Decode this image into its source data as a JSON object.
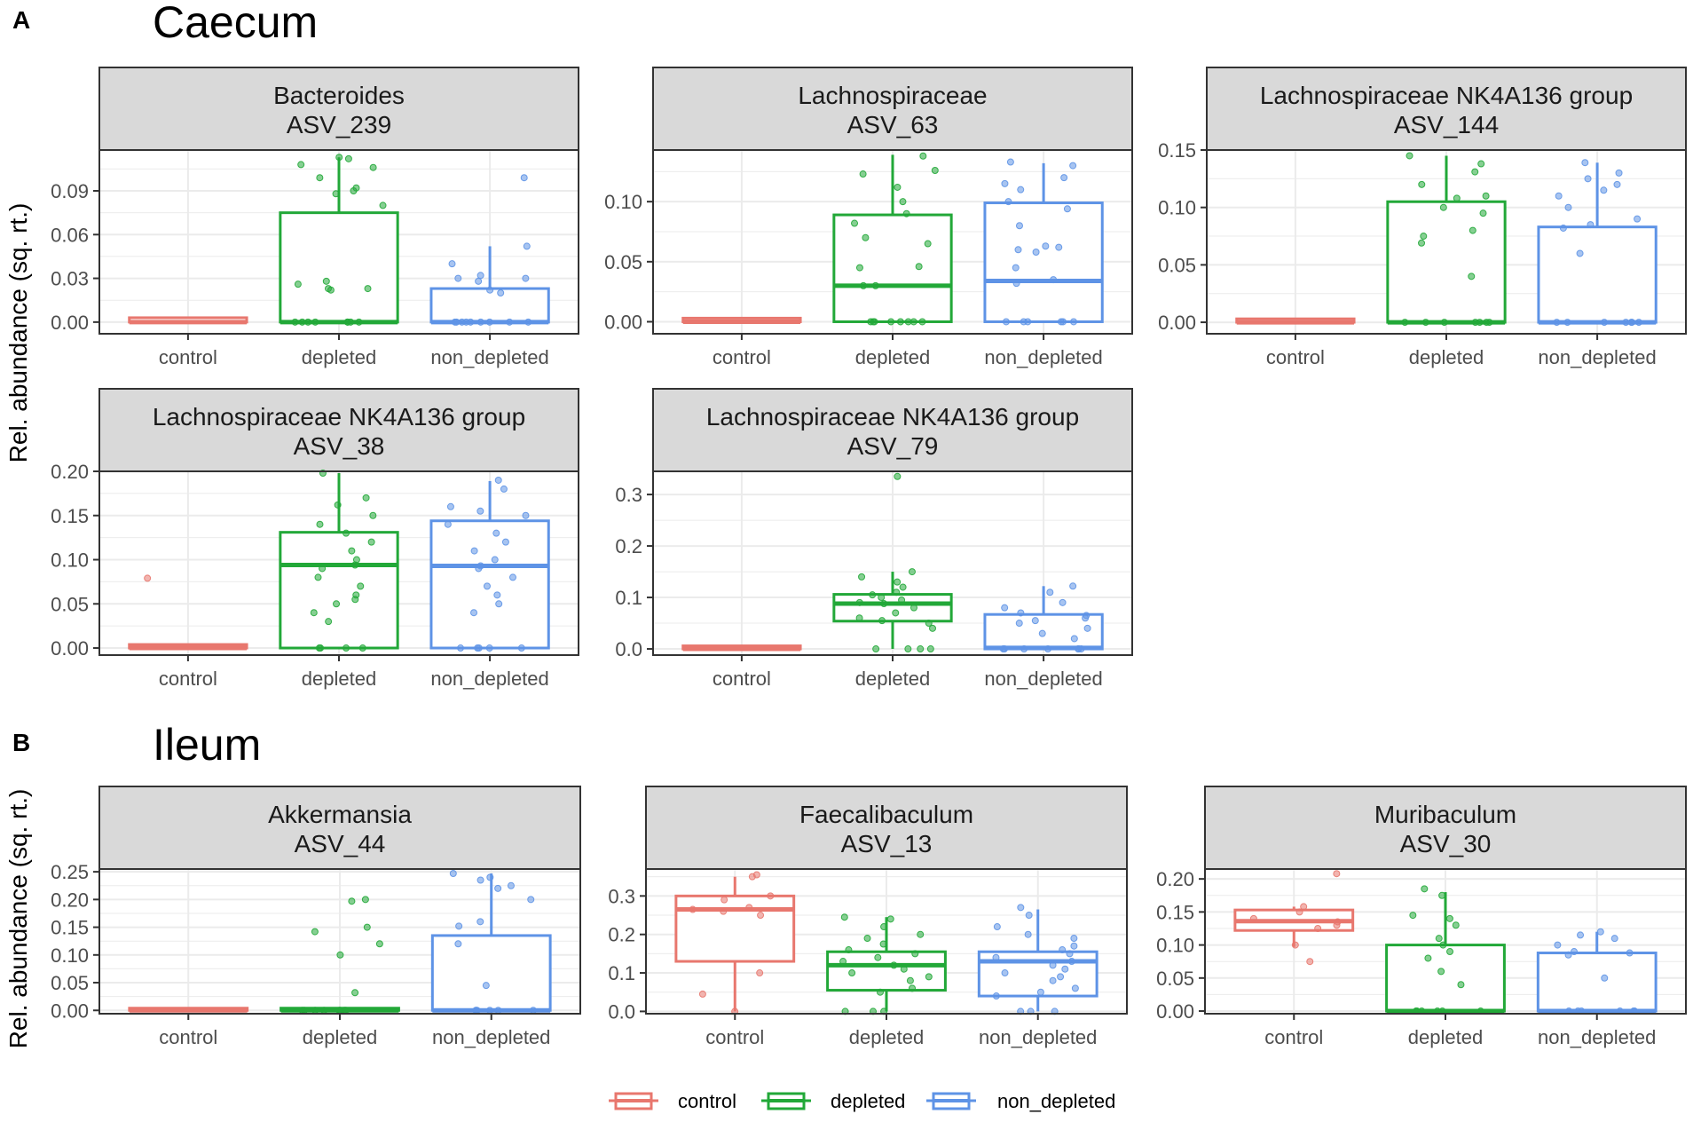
{
  "sections": [
    {
      "letter": "A",
      "title": "Caecum"
    },
    {
      "letter": "B",
      "title": "Ileum"
    }
  ],
  "y_axis_label": "Rel. abundance (sq. rt.)",
  "colors": {
    "control": "#E8776E",
    "depleted": "#22A838",
    "non_depleted": "#5E93E6"
  },
  "chart_data": [
    {
      "type": "box",
      "section": "Caecum",
      "title": [
        "Bacteroides",
        "ASV_239"
      ],
      "categories": [
        "control",
        "depleted",
        "non_depleted"
      ],
      "ylim": [
        -0.008,
        0.118
      ],
      "yticks": [
        0.0,
        0.03,
        0.06,
        0.09
      ],
      "boxes": [
        {
          "q1": 0,
          "median": 0,
          "q3": 0.003,
          "wlo": 0,
          "whi": 0.003,
          "points": []
        },
        {
          "q1": 0,
          "median": 0,
          "q3": 0.075,
          "wlo": 0,
          "whi": 0.113,
          "points": [
            0.112,
            0.108,
            0.113,
            0.106,
            0.099,
            0.092,
            0.09,
            0.088,
            0.08,
            0.028,
            0.026,
            0.023,
            0.023,
            0.022,
            0.0,
            0.0,
            0.0,
            0.0,
            0.0,
            0.0,
            0.0,
            0.0
          ]
        },
        {
          "q1": 0,
          "median": 0,
          "q3": 0.023,
          "wlo": 0,
          "whi": 0.052,
          "points": [
            0.099,
            0.052,
            0.04,
            0.032,
            0.03,
            0.03,
            0.028,
            0.022,
            0.02,
            0.0,
            0.0,
            0.0,
            0.0,
            0.0,
            0.0,
            0.0,
            0.0,
            0.0
          ]
        }
      ]
    },
    {
      "type": "box",
      "section": "Caecum",
      "title": [
        "Lachnospiraceae",
        "ASV_63"
      ],
      "categories": [
        "control",
        "depleted",
        "non_depleted"
      ],
      "ylim": [
        -0.01,
        0.143
      ],
      "yticks": [
        0.0,
        0.05,
        0.1
      ],
      "boxes": [
        {
          "q1": 0,
          "median": 0,
          "q3": 0.003,
          "wlo": 0,
          "whi": 0.003,
          "points": []
        },
        {
          "q1": 0,
          "median": 0.03,
          "q3": 0.089,
          "wlo": 0,
          "whi": 0.139,
          "points": [
            0.138,
            0.126,
            0.123,
            0.112,
            0.1,
            0.09,
            0.082,
            0.07,
            0.065,
            0.046,
            0.045,
            0.03,
            0.03,
            0.0,
            0.0,
            0.0,
            0.0,
            0.0,
            0.0,
            0.0,
            0.0
          ]
        },
        {
          "q1": 0,
          "median": 0.034,
          "q3": 0.099,
          "wlo": 0,
          "whi": 0.132,
          "points": [
            0.133,
            0.13,
            0.12,
            0.115,
            0.11,
            0.1,
            0.094,
            0.08,
            0.063,
            0.062,
            0.06,
            0.058,
            0.045,
            0.035,
            0.032,
            0.0,
            0.0,
            0.0,
            0.0,
            0.0,
            0.0
          ]
        }
      ]
    },
    {
      "type": "box",
      "section": "Caecum",
      "title": [
        "Lachnospiraceae NK4A136 group",
        "ASV_144"
      ],
      "categories": [
        "control",
        "depleted",
        "non_depleted"
      ],
      "ylim": [
        -0.01,
        0.15
      ],
      "yticks": [
        0.0,
        0.05,
        0.1,
        0.15
      ],
      "boxes": [
        {
          "q1": 0,
          "median": 0,
          "q3": 0.003,
          "wlo": 0,
          "whi": 0.003,
          "points": []
        },
        {
          "q1": 0,
          "median": 0,
          "q3": 0.105,
          "wlo": 0,
          "whi": 0.145,
          "points": [
            0.145,
            0.138,
            0.131,
            0.12,
            0.11,
            0.108,
            0.1,
            0.095,
            0.08,
            0.075,
            0.069,
            0.04,
            0.0,
            0.0,
            0.0,
            0.0,
            0.0,
            0.0,
            0.0
          ]
        },
        {
          "q1": 0,
          "median": 0,
          "q3": 0.083,
          "wlo": 0,
          "whi": 0.139,
          "points": [
            0.139,
            0.13,
            0.125,
            0.12,
            0.115,
            0.11,
            0.1,
            0.09,
            0.085,
            0.082,
            0.06,
            0.0,
            0.0,
            0.0,
            0.0,
            0.0,
            0.0,
            0.0
          ]
        }
      ]
    },
    {
      "type": "box",
      "section": "Caecum",
      "title": [
        "Lachnospiraceae NK4A136 group",
        "ASV_38"
      ],
      "categories": [
        "control",
        "depleted",
        "non_depleted"
      ],
      "ylim": [
        -0.008,
        0.2
      ],
      "yticks": [
        0.0,
        0.05,
        0.1,
        0.15,
        0.2
      ],
      "boxes": [
        {
          "q1": 0,
          "median": 0,
          "q3": 0.004,
          "wlo": 0,
          "whi": 0.004,
          "points": [
            0.079
          ]
        },
        {
          "q1": 0,
          "median": 0.094,
          "q3": 0.131,
          "wlo": 0,
          "whi": 0.198,
          "points": [
            0.198,
            0.17,
            0.162,
            0.15,
            0.14,
            0.13,
            0.12,
            0.11,
            0.1,
            0.094,
            0.09,
            0.08,
            0.07,
            0.06,
            0.055,
            0.05,
            0.04,
            0.03,
            0.0,
            0.0,
            0.0,
            0.0
          ]
        },
        {
          "q1": 0,
          "median": 0.093,
          "q3": 0.144,
          "wlo": 0,
          "whi": 0.189,
          "points": [
            0.19,
            0.18,
            0.16,
            0.155,
            0.15,
            0.14,
            0.13,
            0.12,
            0.11,
            0.1,
            0.093,
            0.09,
            0.08,
            0.07,
            0.06,
            0.05,
            0.04,
            0.0,
            0.0,
            0.0,
            0.0,
            0.0
          ]
        }
      ]
    },
    {
      "type": "box",
      "section": "Caecum",
      "title": [
        "Lachnospiraceae NK4A136 group",
        "ASV_79"
      ],
      "categories": [
        "control",
        "depleted",
        "non_depleted"
      ],
      "ylim": [
        -0.012,
        0.345
      ],
      "yticks": [
        0.0,
        0.1,
        0.2,
        0.3
      ],
      "boxes": [
        {
          "q1": 0,
          "median": 0,
          "q3": 0.006,
          "wlo": 0,
          "whi": 0.006,
          "points": []
        },
        {
          "q1": 0.054,
          "median": 0.088,
          "q3": 0.106,
          "wlo": 0,
          "whi": 0.15,
          "points": [
            0.335,
            0.15,
            0.14,
            0.13,
            0.12,
            0.11,
            0.105,
            0.1,
            0.095,
            0.09,
            0.088,
            0.08,
            0.07,
            0.06,
            0.055,
            0.05,
            0.04,
            0.0,
            0.0,
            0.0,
            0.0
          ]
        },
        {
          "q1": 0,
          "median": 0.002,
          "q3": 0.067,
          "wlo": 0,
          "whi": 0.122,
          "points": [
            0.122,
            0.11,
            0.09,
            0.08,
            0.07,
            0.065,
            0.06,
            0.055,
            0.05,
            0.04,
            0.03,
            0.02,
            0.0,
            0.0,
            0.0,
            0.0,
            0.0,
            0.0,
            0.0
          ]
        }
      ]
    },
    {
      "type": "box",
      "section": "Ileum",
      "title": [
        "Akkermansia",
        "ASV_44"
      ],
      "categories": [
        "control",
        "depleted",
        "non_depleted"
      ],
      "ylim": [
        -0.006,
        0.255
      ],
      "yticks": [
        0.0,
        0.05,
        0.1,
        0.15,
        0.2,
        0.25
      ],
      "boxes": [
        {
          "q1": 0,
          "median": 0,
          "q3": 0.004,
          "wlo": 0,
          "whi": 0.004,
          "points": []
        },
        {
          "q1": 0,
          "median": 0,
          "q3": 0.004,
          "wlo": 0,
          "whi": 0.004,
          "points": [
            0.2,
            0.197,
            0.15,
            0.142,
            0.12,
            0.1,
            0.032,
            0.0,
            0.0,
            0.0,
            0.0,
            0.0,
            0.0,
            0.0,
            0.0
          ]
        },
        {
          "q1": 0,
          "median": 0,
          "q3": 0.135,
          "wlo": 0,
          "whi": 0.247,
          "points": [
            0.247,
            0.24,
            0.235,
            0.225,
            0.22,
            0.2,
            0.16,
            0.152,
            0.12,
            0.045,
            0.0,
            0.0,
            0.0,
            0.0,
            0.0,
            0.0
          ]
        }
      ]
    },
    {
      "type": "box",
      "section": "Ileum",
      "title": [
        "Faecalibaculum",
        "ASV_13"
      ],
      "categories": [
        "control",
        "depleted",
        "non_depleted"
      ],
      "ylim": [
        -0.006,
        0.37
      ],
      "yticks": [
        0.0,
        0.1,
        0.2,
        0.3
      ],
      "boxes": [
        {
          "q1": 0.13,
          "median": 0.265,
          "q3": 0.3,
          "wlo": 0,
          "whi": 0.35,
          "points": [
            0.355,
            0.35,
            0.3,
            0.29,
            0.27,
            0.265,
            0.26,
            0.25,
            0.1,
            0.045,
            0.0
          ]
        },
        {
          "q1": 0.055,
          "median": 0.12,
          "q3": 0.155,
          "wlo": 0,
          "whi": 0.245,
          "points": [
            0.245,
            0.24,
            0.22,
            0.2,
            0.19,
            0.175,
            0.16,
            0.15,
            0.14,
            0.13,
            0.12,
            0.11,
            0.1,
            0.09,
            0.08,
            0.06,
            0.05,
            0.0,
            0.0,
            0.0
          ]
        },
        {
          "q1": 0.04,
          "median": 0.13,
          "q3": 0.155,
          "wlo": 0,
          "whi": 0.265,
          "points": [
            0.27,
            0.25,
            0.22,
            0.2,
            0.19,
            0.17,
            0.16,
            0.15,
            0.14,
            0.13,
            0.12,
            0.11,
            0.1,
            0.09,
            0.08,
            0.06,
            0.05,
            0.04,
            0.0,
            0.0,
            0.0
          ]
        }
      ]
    },
    {
      "type": "box",
      "section": "Ileum",
      "title": [
        "Muribaculum",
        "ASV_30"
      ],
      "categories": [
        "control",
        "depleted",
        "non_depleted"
      ],
      "ylim": [
        -0.004,
        0.215
      ],
      "yticks": [
        0.0,
        0.05,
        0.1,
        0.15,
        0.2
      ],
      "boxes": [
        {
          "q1": 0.122,
          "median": 0.136,
          "q3": 0.153,
          "wlo": 0.097,
          "whi": 0.158,
          "points": [
            0.208,
            0.158,
            0.15,
            0.14,
            0.135,
            0.13,
            0.125,
            0.1,
            0.075
          ]
        },
        {
          "q1": 0,
          "median": 0,
          "q3": 0.1,
          "wlo": 0,
          "whi": 0.18,
          "points": [
            0.185,
            0.175,
            0.145,
            0.14,
            0.13,
            0.11,
            0.1,
            0.09,
            0.08,
            0.06,
            0.04,
            0.0,
            0.0,
            0.0,
            0.0,
            0.0,
            0.0
          ]
        },
        {
          "q1": 0,
          "median": 0,
          "q3": 0.088,
          "wlo": 0,
          "whi": 0.12,
          "points": [
            0.12,
            0.115,
            0.11,
            0.1,
            0.09,
            0.088,
            0.085,
            0.05,
            0.0,
            0.0,
            0.0,
            0.0,
            0.0,
            0.0
          ]
        }
      ]
    }
  ],
  "legend": {
    "entries": [
      "control",
      "depleted",
      "non_depleted"
    ]
  }
}
